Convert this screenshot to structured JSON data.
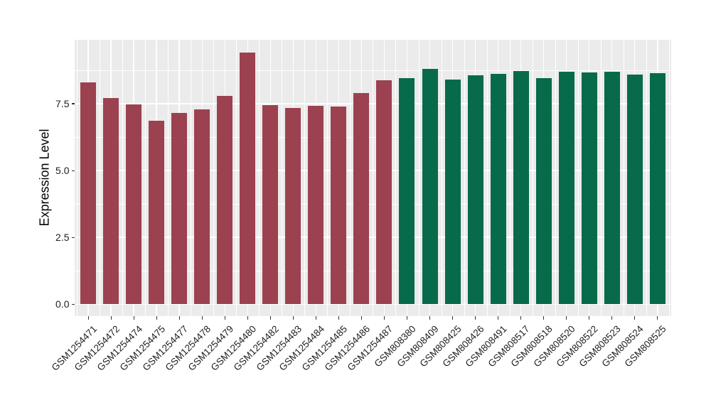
{
  "chart_data": {
    "type": "bar",
    "title": "",
    "ylabel": "Expression Level",
    "xlabel": "",
    "ylim": [
      0,
      9.9
    ],
    "grid": true,
    "legend_position": "none",
    "panel_background": "#EBEBEB",
    "gridline_color": "#FFFFFF",
    "bar_colors": {
      "maroon": "#9C4150",
      "green": "#076A4B"
    },
    "yticks": [
      {
        "label": "0.0",
        "value": 0.0
      },
      {
        "label": "2.5",
        "value": 2.5
      },
      {
        "label": "5.0",
        "value": 5.0
      },
      {
        "label": "7.5",
        "value": 7.5
      }
    ],
    "minor_yticks": [
      1.25,
      3.75,
      6.25,
      8.75
    ],
    "bars": [
      {
        "label": "GSM1254471",
        "value": 8.3,
        "color": "maroon"
      },
      {
        "label": "GSM1254472",
        "value": 7.7,
        "color": "maroon"
      },
      {
        "label": "GSM1254474",
        "value": 7.47,
        "color": "maroon"
      },
      {
        "label": "GSM1254475",
        "value": 6.86,
        "color": "maroon"
      },
      {
        "label": "GSM1254477",
        "value": 7.15,
        "color": "maroon"
      },
      {
        "label": "GSM1254478",
        "value": 7.28,
        "color": "maroon"
      },
      {
        "label": "GSM1254479",
        "value": 7.8,
        "color": "maroon"
      },
      {
        "label": "GSM1254480",
        "value": 9.42,
        "color": "maroon"
      },
      {
        "label": "GSM1254482",
        "value": 7.46,
        "color": "maroon"
      },
      {
        "label": "GSM1254483",
        "value": 7.35,
        "color": "maroon"
      },
      {
        "label": "GSM1254484",
        "value": 7.42,
        "color": "maroon"
      },
      {
        "label": "GSM1254485",
        "value": 7.4,
        "color": "maroon"
      },
      {
        "label": "GSM1254486",
        "value": 7.9,
        "color": "maroon"
      },
      {
        "label": "GSM1254487",
        "value": 8.38,
        "color": "maroon"
      },
      {
        "label": "GSM808380",
        "value": 8.46,
        "color": "green"
      },
      {
        "label": "GSM808409",
        "value": 8.8,
        "color": "green"
      },
      {
        "label": "GSM808425",
        "value": 8.4,
        "color": "green"
      },
      {
        "label": "GSM808426",
        "value": 8.57,
        "color": "green"
      },
      {
        "label": "GSM808491",
        "value": 8.62,
        "color": "green"
      },
      {
        "label": "GSM808517",
        "value": 8.72,
        "color": "green"
      },
      {
        "label": "GSM808518",
        "value": 8.46,
        "color": "green"
      },
      {
        "label": "GSM808520",
        "value": 8.7,
        "color": "green"
      },
      {
        "label": "GSM808522",
        "value": 8.67,
        "color": "green"
      },
      {
        "label": "GSM808523",
        "value": 8.69,
        "color": "green"
      },
      {
        "label": "GSM808524",
        "value": 8.59,
        "color": "green"
      },
      {
        "label": "GSM808525",
        "value": 8.65,
        "color": "green"
      }
    ]
  }
}
